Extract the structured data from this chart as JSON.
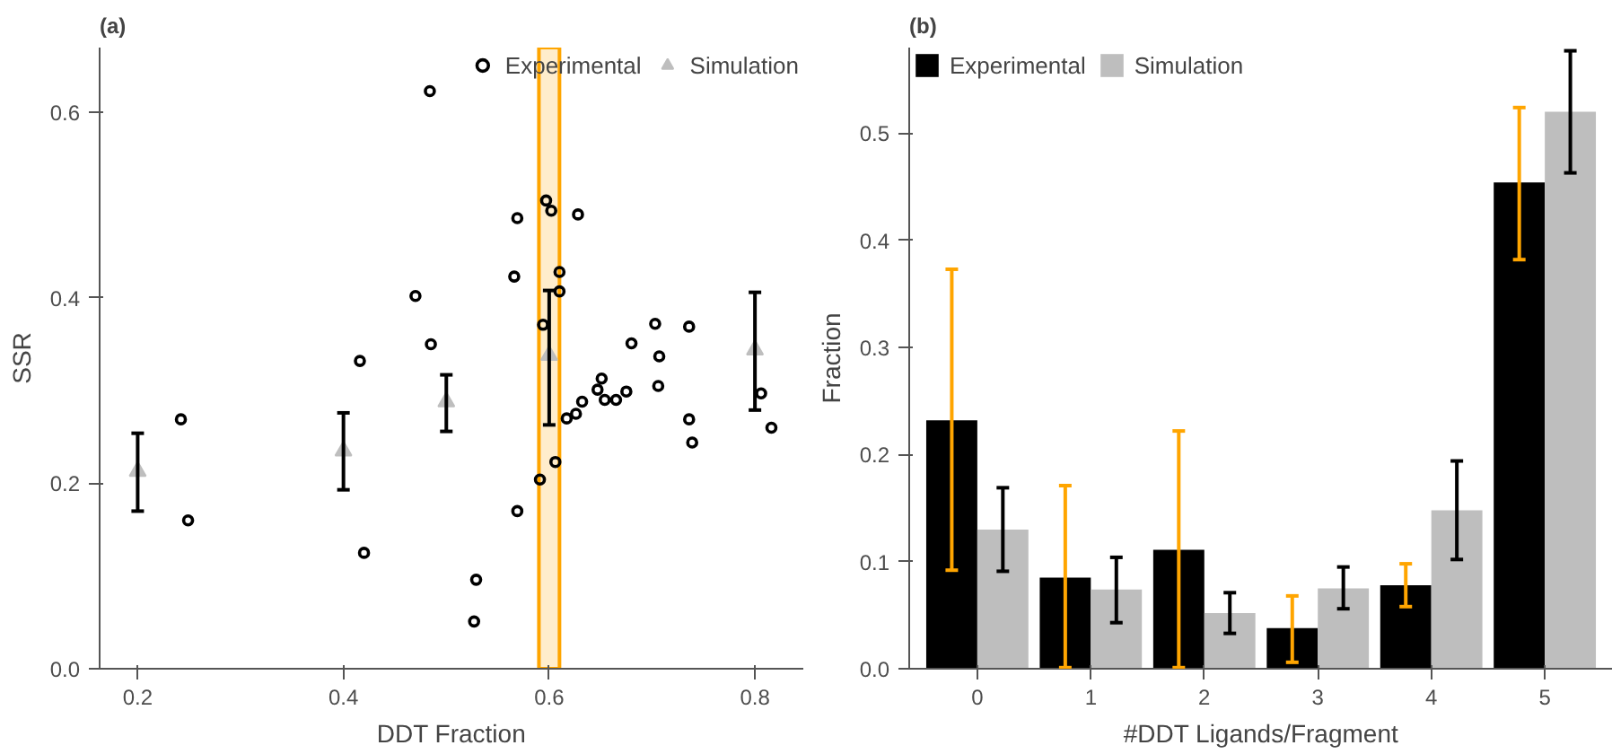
{
  "chart_data": [
    {
      "type": "scatter",
      "title": "(a)",
      "xlabel": "DDT Fraction",
      "ylabel": "SSR",
      "xlim": [
        0.163,
        0.847
      ],
      "ylim": [
        0,
        0.67
      ],
      "xticks": [
        0.2,
        0.4,
        0.6,
        0.8
      ],
      "yticks": [
        {
          "value": 0,
          "label": "0.0"
        },
        0.2,
        0.4,
        0.6
      ],
      "grid": false,
      "legend": "top right",
      "bands": [
        {
          "axis": "x",
          "from": 0.59,
          "to": 0.61,
          "color": "#ffa500"
        }
      ],
      "series": [
        {
          "name": "Experimental",
          "color": "#000000",
          "marker": "circle",
          "x": [
            0.242,
            0.249,
            0.416,
            0.42,
            0.47,
            0.484,
            0.485,
            0.529,
            0.527,
            0.569,
            0.591,
            0.606,
            0.617,
            0.626,
            0.632,
            0.647,
            0.651,
            0.654,
            0.665,
            0.675,
            0.68,
            0.706,
            0.707,
            0.736,
            0.739,
            0.806,
            0.816,
            0.569,
            0.597,
            0.602,
            0.628,
            0.566,
            0.61,
            0.61,
            0.594,
            0.703,
            0.736
          ],
          "values": [
            0.269,
            0.16,
            0.332,
            0.125,
            0.402,
            0.623,
            0.35,
            0.096,
            0.051,
            0.17,
            0.204,
            0.223,
            0.27,
            0.275,
            0.288,
            0.301,
            0.313,
            0.29,
            0.29,
            0.299,
            0.351,
            0.305,
            0.337,
            0.269,
            0.244,
            0.297,
            0.26,
            0.486,
            0.505,
            0.494,
            0.49,
            0.423,
            0.428,
            0.407,
            0.371,
            0.372,
            0.369
          ]
        },
        {
          "name": "Simulation",
          "color": "#bebebe",
          "marker": "triangle",
          "x": [
            0.2,
            0.4,
            0.5,
            0.6,
            0.8
          ],
          "values": [
            0.213,
            0.235,
            0.288,
            0.338,
            0.344
          ],
          "errors": [
            [
              0.17,
              0.254
            ],
            [
              0.193,
              0.276
            ],
            [
              0.256,
              0.317
            ],
            [
              0.263,
              0.408
            ],
            [
              0.279,
              0.406
            ]
          ]
        }
      ]
    },
    {
      "type": "bar",
      "title": "(b)",
      "xlabel": "#DDT Ligands/Fragment",
      "ylabel": "Fraction",
      "categories": [
        "0",
        "1",
        "2",
        "3",
        "4",
        "5"
      ],
      "ylim": [
        0,
        0.58
      ],
      "yticks": [
        {
          "value": 0,
          "label": "0.0"
        },
        0.1,
        0.2,
        0.3,
        0.4,
        0.5
      ],
      "grid": false,
      "legend": "top left",
      "series": [
        {
          "name": "Experimental",
          "color": "#000000",
          "values": [
            0.232,
            0.085,
            0.111,
            0.038,
            0.078,
            0.454
          ],
          "errors": [
            [
              0.092,
              0.373
            ],
            [
              0.001,
              0.171
            ],
            [
              0.001,
              0.222
            ],
            [
              0.006,
              0.068
            ],
            [
              0.058,
              0.098
            ],
            [
              0.382,
              0.524
            ]
          ]
        },
        {
          "name": "Simulation",
          "color": "#bebebe",
          "values": [
            0.13,
            0.074,
            0.052,
            0.075,
            0.148,
            0.52
          ],
          "errors": [
            [
              0.091,
              0.169
            ],
            [
              0.043,
              0.104
            ],
            [
              0.033,
              0.071
            ],
            [
              0.056,
              0.095
            ],
            [
              0.102,
              0.194
            ],
            [
              0.463,
              0.577
            ]
          ]
        }
      ]
    }
  ]
}
